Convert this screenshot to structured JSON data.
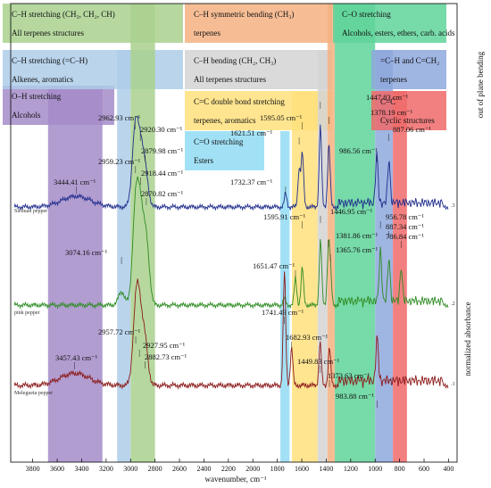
{
  "chart_data": {
    "type": "line",
    "xlabel": "wavenumber, cm⁻¹",
    "ylabel": "normalized absorbance",
    "side_label": "out of plane bending",
    "xlim": [
      3980,
      330
    ],
    "x_ticks": [
      3800,
      3600,
      3400,
      3200,
      3000,
      2800,
      2600,
      2400,
      2200,
      2000,
      1800,
      1600,
      1400,
      1200,
      1000,
      800,
      600,
      400
    ],
    "bands": [
      {
        "x0": 3675,
        "x1": 3230,
        "top_label": "O–H stretching",
        "sub_label": "Alcohols",
        "color": "#a58cc9"
      },
      {
        "x0": 3110,
        "x1": 3000,
        "top_label": "C–H stretching (=C–H)",
        "sub_label": "Alkenes, aromatics",
        "color": "#aecde9"
      },
      {
        "x0": 3000,
        "x1": 2800,
        "top_label": "C–H stretching (CH₃, CH₂, CH)",
        "sub_label": "All terpenes structures",
        "color": "#a9d18e"
      },
      {
        "x0": 1775,
        "x1": 1700,
        "top_label": "C=O stretching",
        "sub_label": "Esters",
        "color": "#92dcf3"
      },
      {
        "x0": 1680,
        "x1": 1470,
        "top_label": "C=C double bond stretching",
        "sub_label": "terpenes, aromatics",
        "color": "#ffe17d"
      },
      {
        "x0": 1470,
        "x1": 1390,
        "top_label": "C–H bending (CH₂, CH₃)",
        "sub_label": "All terpenes structures",
        "color": "#d3d3d3"
      },
      {
        "x0": 1390,
        "x1": 1330,
        "top_label": "C–H symmetric bending (CH₃)",
        "sub_label": "terpenes",
        "color": "#f5b183"
      },
      {
        "x0": 1330,
        "x1": 1000,
        "top_label": "C–O stretching",
        "sub_label": "Alcohols, esters, ethers, carb. acids",
        "color": "#5fd39a"
      },
      {
        "x0": 1000,
        "x1": 855,
        "top_label": "=C–H and C=CH₂",
        "sub_label": "terpenes",
        "color": "#8ea8dd"
      },
      {
        "x0": 855,
        "x1": 740,
        "top_label": "C=C",
        "sub_label": "Cyclic structures",
        "color": "#f06a6a"
      }
    ],
    "series": [
      {
        "name": "Sichuan pepper",
        "offset_label": "3",
        "color": "#1f2c8c",
        "peaks": [
          {
            "x": 3444.41,
            "y": 0.08,
            "label": "3444.41 cm⁻¹"
          },
          {
            "x": 2962.93,
            "y": 0.55,
            "label": "2962.93 cm⁻¹"
          },
          {
            "x": 2920.3,
            "y": 0.38,
            "label": "2920.30 cm⁻¹"
          },
          {
            "x": 2879.98,
            "y": 0.24,
            "label": "2879.98 cm⁻¹"
          },
          {
            "x": 1732.37,
            "y": 0.1,
            "label": "1732.37 cm⁻¹"
          },
          {
            "x": 1621.51,
            "y": 0.28,
            "label": "1621.51 cm⁻¹"
          },
          {
            "x": 1595.05,
            "y": 0.4,
            "label": "1595.05 cm⁻¹"
          },
          {
            "x": 1447.83,
            "y": 0.6,
            "label": "1447.83 cm⁻¹"
          },
          {
            "x": 1378.19,
            "y": 0.47,
            "label": "1378.19 cm⁻¹"
          },
          {
            "x": 986.56,
            "y": 0.36,
            "label": "986.56 cm⁻¹"
          },
          {
            "x": 887.06,
            "y": 0.32,
            "label": "887.06 cm⁻¹"
          }
        ]
      },
      {
        "name": "pink pepper",
        "offset_label": "2",
        "color": "#2e8b22",
        "peaks": [
          {
            "x": 3074.16,
            "y": 0.1,
            "label": "3074.16 cm⁻¹"
          },
          {
            "x": 2959.23,
            "y": 0.7,
            "label": "2959.23 cm⁻¹"
          },
          {
            "x": 2918.44,
            "y": 0.6,
            "label": "2918.44 cm⁻¹"
          },
          {
            "x": 2870.82,
            "y": 0.45,
            "label": "2870.82 cm⁻¹"
          },
          {
            "x": 1741.49,
            "y": 0.05,
            "label": "1741.49 cm⁻¹"
          },
          {
            "x": 1651.47,
            "y": 0.2,
            "label": "1651.47 cm⁻¹"
          },
          {
            "x": 1595.91,
            "y": 0.28,
            "label": "1595.91 cm⁻¹"
          },
          {
            "x": 1446.95,
            "y": 0.48,
            "label": "1446.95 cm⁻¹"
          },
          {
            "x": 1381.86,
            "y": 0.42,
            "label": "1381.86 cm⁻¹"
          },
          {
            "x": 1365.76,
            "y": 0.22,
            "label": "1365.76 cm⁻¹"
          },
          {
            "x": 956.78,
            "y": 0.38,
            "label": "956.78 cm⁻¹"
          },
          {
            "x": 887.34,
            "y": 0.32,
            "label": "887.34 cm⁻¹"
          },
          {
            "x": 786.84,
            "y": 0.25,
            "label": "786.84 cm⁻¹"
          }
        ]
      },
      {
        "name": "Melegueta pepper",
        "offset_label": "1",
        "color": "#8b1a1a",
        "peaks": [
          {
            "x": 3457.43,
            "y": 0.08,
            "label": "3457.43 cm⁻¹"
          },
          {
            "x": 2957.72,
            "y": 0.42,
            "label": "2957.72 cm⁻¹"
          },
          {
            "x": 2927.95,
            "y": 0.38,
            "label": "2927.95 cm⁻¹"
          },
          {
            "x": 2882.73,
            "y": 0.28,
            "label": "2882.73 cm⁻¹"
          },
          {
            "x": 1741.49,
            "y": 0.75,
            "label": ""
          },
          {
            "x": 1682.93,
            "y": 0.25,
            "label": "1682.93 cm⁻¹"
          },
          {
            "x": 1449.83,
            "y": 0.28,
            "label": "1449.83 cm⁻¹"
          },
          {
            "x": 1373.63,
            "y": 0.25,
            "label": "1373.63 cm⁻¹"
          },
          {
            "x": 983.88,
            "y": 0.28,
            "label": "983.88 cm⁻¹"
          }
        ]
      }
    ]
  }
}
